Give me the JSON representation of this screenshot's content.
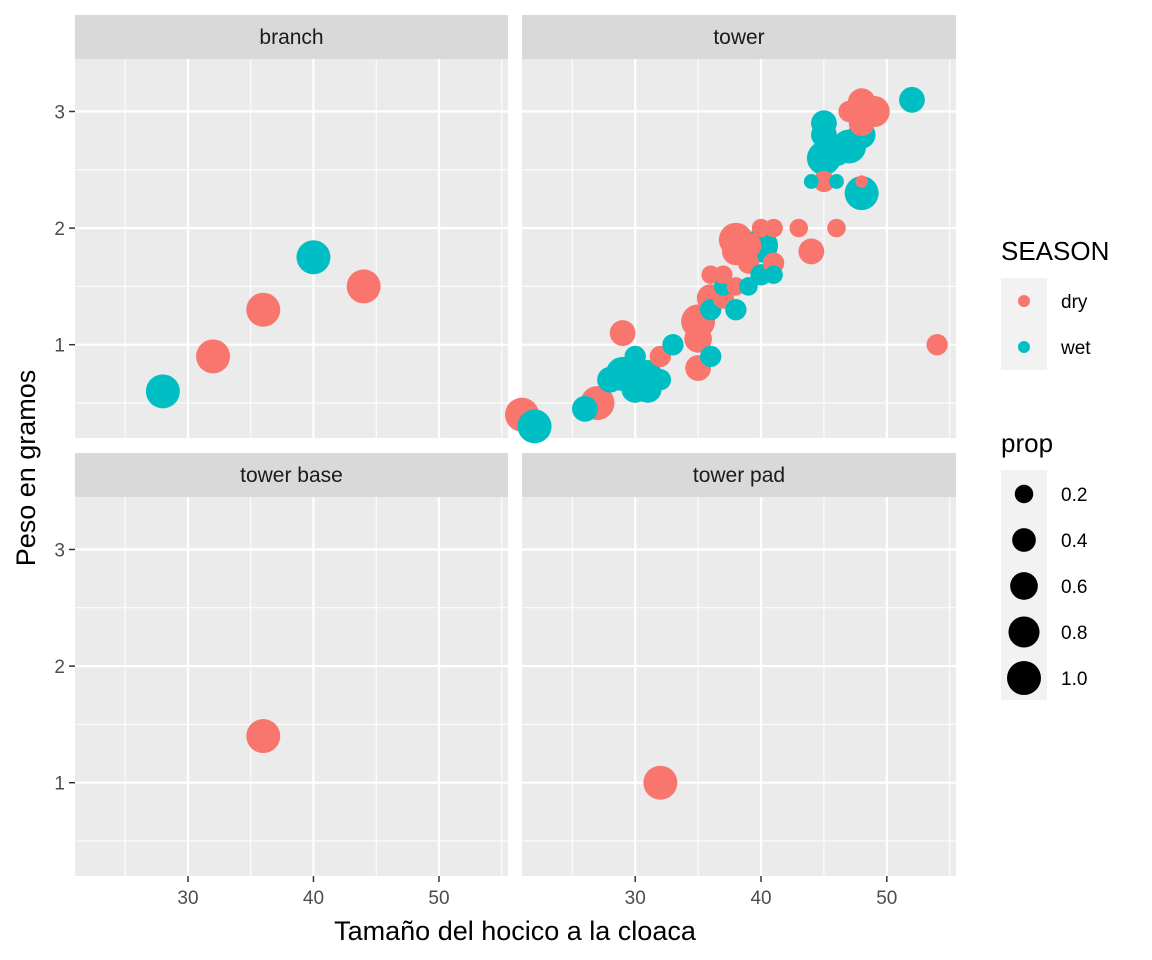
{
  "chart_data": {
    "type": "scatter",
    "xlabel": "Tamaño del hocico a la cloaca",
    "ylabel": "Peso en gramos",
    "xlim": [
      21,
      55.5
    ],
    "ylim": [
      0.2,
      3.45
    ],
    "x_ticks": [
      30,
      40,
      50
    ],
    "x_tick_labels": [
      "30",
      "40",
      "50"
    ],
    "y_ticks": [
      1,
      2,
      3
    ],
    "y_tick_labels": [
      "1",
      "2",
      "3"
    ],
    "grid": true,
    "facet_layout": "2x2",
    "facets": [
      {
        "label": "branch",
        "points": [
          {
            "x": 28,
            "y": 0.6,
            "season": "wet",
            "prop": 1.0
          },
          {
            "x": 32,
            "y": 0.9,
            "season": "dry",
            "prop": 1.0
          },
          {
            "x": 36,
            "y": 1.3,
            "season": "dry",
            "prop": 1.0
          },
          {
            "x": 40,
            "y": 1.75,
            "season": "wet",
            "prop": 1.0
          },
          {
            "x": 44,
            "y": 1.5,
            "season": "dry",
            "prop": 1.0
          }
        ]
      },
      {
        "label": "tower",
        "points": [
          {
            "x": 21,
            "y": 0.4,
            "season": "dry",
            "prop": 1.0
          },
          {
            "x": 22,
            "y": 0.3,
            "season": "wet",
            "prop": 1.0
          },
          {
            "x": 26,
            "y": 0.45,
            "season": "wet",
            "prop": 0.5
          },
          {
            "x": 27,
            "y": 0.5,
            "season": "dry",
            "prop": 1.0
          },
          {
            "x": 28,
            "y": 0.7,
            "season": "wet",
            "prop": 0.5
          },
          {
            "x": 29,
            "y": 0.75,
            "season": "wet",
            "prop": 1.0
          },
          {
            "x": 29,
            "y": 1.1,
            "season": "dry",
            "prop": 0.5
          },
          {
            "x": 30,
            "y": 0.62,
            "season": "wet",
            "prop": 0.6
          },
          {
            "x": 30,
            "y": 0.9,
            "season": "wet",
            "prop": 0.3
          },
          {
            "x": 30,
            "y": 0.75,
            "season": "wet",
            "prop": 0.6
          },
          {
            "x": 31,
            "y": 0.62,
            "season": "wet",
            "prop": 0.6
          },
          {
            "x": 31,
            "y": 0.75,
            "season": "wet",
            "prop": 0.6
          },
          {
            "x": 32,
            "y": 0.7,
            "season": "wet",
            "prop": 0.3
          },
          {
            "x": 32,
            "y": 0.9,
            "season": "dry",
            "prop": 0.3
          },
          {
            "x": 33,
            "y": 1.0,
            "season": "wet",
            "prop": 0.3
          },
          {
            "x": 35,
            "y": 0.8,
            "season": "dry",
            "prop": 0.5
          },
          {
            "x": 35,
            "y": 1.2,
            "season": "dry",
            "prop": 1.0
          },
          {
            "x": 35,
            "y": 1.05,
            "season": "dry",
            "prop": 0.6
          },
          {
            "x": 36,
            "y": 0.9,
            "season": "wet",
            "prop": 0.3
          },
          {
            "x": 36,
            "y": 1.3,
            "season": "wet",
            "prop": 0.3
          },
          {
            "x": 36,
            "y": 1.4,
            "season": "dry",
            "prop": 0.6
          },
          {
            "x": 36,
            "y": 1.6,
            "season": "dry",
            "prop": 0.2
          },
          {
            "x": 37,
            "y": 1.5,
            "season": "wet",
            "prop": 0.2
          },
          {
            "x": 37,
            "y": 1.6,
            "season": "dry",
            "prop": 0.2
          },
          {
            "x": 37,
            "y": 1.4,
            "season": "dry",
            "prop": 0.3
          },
          {
            "x": 38,
            "y": 1.3,
            "season": "wet",
            "prop": 0.3
          },
          {
            "x": 38,
            "y": 1.5,
            "season": "dry",
            "prop": 0.2
          },
          {
            "x": 38,
            "y": 1.9,
            "season": "dry",
            "prop": 1.0
          },
          {
            "x": 38,
            "y": 1.8,
            "season": "dry",
            "prop": 0.6
          },
          {
            "x": 39,
            "y": 1.5,
            "season": "wet",
            "prop": 0.2
          },
          {
            "x": 39,
            "y": 1.7,
            "season": "dry",
            "prop": 0.3
          },
          {
            "x": 39,
            "y": 1.85,
            "season": "dry",
            "prop": 0.5
          },
          {
            "x": 40,
            "y": 1.85,
            "season": "wet",
            "prop": 1.0
          },
          {
            "x": 40,
            "y": 1.6,
            "season": "wet",
            "prop": 0.3
          },
          {
            "x": 40,
            "y": 2.0,
            "season": "dry",
            "prop": 0.2
          },
          {
            "x": 41,
            "y": 1.6,
            "season": "wet",
            "prop": 0.2
          },
          {
            "x": 41,
            "y": 1.7,
            "season": "dry",
            "prop": 0.3
          },
          {
            "x": 41,
            "y": 2.0,
            "season": "dry",
            "prop": 0.2
          },
          {
            "x": 43,
            "y": 2.0,
            "season": "dry",
            "prop": 0.2
          },
          {
            "x": 44,
            "y": 1.8,
            "season": "dry",
            "prop": 0.5
          },
          {
            "x": 44,
            "y": 2.4,
            "season": "wet",
            "prop": 0.1
          },
          {
            "x": 45,
            "y": 2.4,
            "season": "dry",
            "prop": 0.3
          },
          {
            "x": 45,
            "y": 2.6,
            "season": "wet",
            "prop": 1.0
          },
          {
            "x": 45,
            "y": 2.8,
            "season": "wet",
            "prop": 0.5
          },
          {
            "x": 45,
            "y": 2.9,
            "season": "wet",
            "prop": 0.5
          },
          {
            "x": 46,
            "y": 2.0,
            "season": "dry",
            "prop": 0.2
          },
          {
            "x": 46,
            "y": 2.4,
            "season": "wet",
            "prop": 0.1
          },
          {
            "x": 46,
            "y": 2.65,
            "season": "wet",
            "prop": 0.6
          },
          {
            "x": 47,
            "y": 2.7,
            "season": "wet",
            "prop": 1.0
          },
          {
            "x": 47,
            "y": 3.0,
            "season": "dry",
            "prop": 0.3
          },
          {
            "x": 48,
            "y": 2.3,
            "season": "wet",
            "prop": 1.0
          },
          {
            "x": 48,
            "y": 2.4,
            "season": "dry",
            "prop": 0.05
          },
          {
            "x": 48,
            "y": 2.8,
            "season": "wet",
            "prop": 0.6
          },
          {
            "x": 48,
            "y": 2.9,
            "season": "dry",
            "prop": 0.5
          },
          {
            "x": 48,
            "y": 3.08,
            "season": "dry",
            "prop": 0.6
          },
          {
            "x": 49,
            "y": 3.0,
            "season": "dry",
            "prop": 0.8
          },
          {
            "x": 52,
            "y": 3.1,
            "season": "wet",
            "prop": 0.5
          },
          {
            "x": 54,
            "y": 1.0,
            "season": "dry",
            "prop": 0.3
          }
        ]
      },
      {
        "label": "tower base",
        "points": [
          {
            "x": 36,
            "y": 1.4,
            "season": "dry",
            "prop": 1.0
          }
        ]
      },
      {
        "label": "tower pad",
        "points": [
          {
            "x": 32,
            "y": 1.0,
            "season": "dry",
            "prop": 1.0
          }
        ]
      }
    ],
    "color_legend": {
      "title": "SEASON",
      "entries": [
        {
          "label": "dry",
          "color": "#F8766D"
        },
        {
          "label": "wet",
          "color": "#00BFC4"
        }
      ]
    },
    "size_legend": {
      "title": "prop",
      "entries": [
        {
          "label": "0.2",
          "value": 0.2
        },
        {
          "label": "0.4",
          "value": 0.4
        },
        {
          "label": "0.6",
          "value": 0.6
        },
        {
          "label": "0.8",
          "value": 0.8
        },
        {
          "label": "1.0",
          "value": 1.0
        }
      ]
    },
    "legend_position": "right",
    "colors": {
      "panel_bg": "#EBEBEB",
      "strip_bg": "#D9D9D9",
      "grid": "#FFFFFF",
      "dry": "#F8766D",
      "wet": "#00BFC4"
    }
  }
}
